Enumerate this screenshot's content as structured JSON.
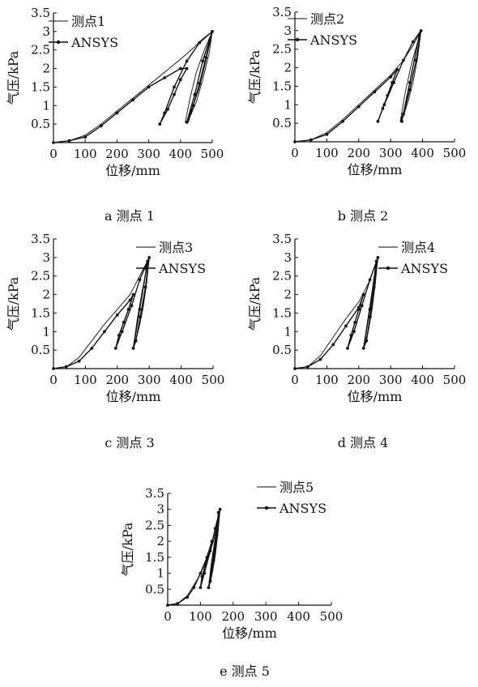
{
  "chart_data": [
    {
      "type": "line",
      "caption": "a 测点 1",
      "xlabel": "位移/mm",
      "ylabel": "气压/kPa",
      "xlim": [
        0,
        500
      ],
      "ylim": [
        0,
        3.5
      ],
      "xticks": [
        0,
        100,
        200,
        300,
        400,
        500
      ],
      "yticks": [
        0.5,
        1.0,
        1.5,
        2.0,
        2.5,
        3.0,
        3.5
      ],
      "legend_position": "top-left",
      "series": [
        {
          "name": "测点1",
          "marker": false,
          "x": [
            0,
            50,
            100,
            150,
            200,
            250,
            300,
            350,
            400,
            440,
            470,
            500,
            490,
            470,
            450,
            425,
            415,
            430,
            450,
            475,
            500,
            480,
            460,
            440,
            425
          ],
          "y": [
            0,
            0.05,
            0.2,
            0.5,
            0.85,
            1.2,
            1.55,
            1.9,
            2.25,
            2.55,
            2.8,
            3.0,
            2.4,
            1.7,
            1.1,
            0.6,
            0.55,
            1.2,
            1.9,
            2.5,
            3.0,
            2.2,
            1.5,
            1.0,
            0.55
          ]
        },
        {
          "name": "ANSYS",
          "marker": true,
          "x": [
            0,
            50,
            100,
            150,
            200,
            250,
            300,
            350,
            400,
            420,
            400,
            380,
            360,
            335,
            350,
            380,
            420,
            460,
            500,
            480,
            460,
            440,
            420,
            445,
            470,
            500
          ],
          "y": [
            0,
            0.05,
            0.15,
            0.45,
            0.8,
            1.15,
            1.5,
            1.75,
            2.0,
            2.0,
            1.7,
            1.3,
            0.9,
            0.5,
            0.8,
            1.5,
            2.2,
            2.7,
            3.0,
            2.3,
            1.6,
            1.0,
            0.55,
            1.3,
            2.2,
            3.0
          ]
        }
      ]
    },
    {
      "type": "line",
      "caption": "b 测点 2",
      "xlabel": "位移/mm",
      "ylabel": "气压/kPa",
      "xlim": [
        0,
        500
      ],
      "ylim": [
        0,
        3.5
      ],
      "xticks": [
        0,
        100,
        200,
        300,
        400,
        500
      ],
      "yticks": [
        0.5,
        1.0,
        1.5,
        2.0,
        2.5,
        3.0,
        3.5
      ],
      "legend_position": "top-left",
      "series": [
        {
          "name": "测点2",
          "marker": false,
          "x": [
            0,
            50,
            100,
            150,
            200,
            250,
            300,
            340,
            370,
            395,
            385,
            370,
            355,
            340,
            330,
            345,
            365,
            395,
            380,
            360,
            345,
            330
          ],
          "y": [
            0,
            0.05,
            0.25,
            0.6,
            1.0,
            1.4,
            1.8,
            2.2,
            2.6,
            3.0,
            2.3,
            1.6,
            1.1,
            0.7,
            0.55,
            1.3,
            2.1,
            3.0,
            2.2,
            1.4,
            0.9,
            0.55
          ]
        },
        {
          "name": "ANSYS",
          "marker": true,
          "x": [
            0,
            50,
            100,
            150,
            200,
            250,
            300,
            320,
            305,
            290,
            275,
            260,
            280,
            310,
            340,
            370,
            395,
            380,
            360,
            340,
            335,
            360,
            390
          ],
          "y": [
            0,
            0.05,
            0.2,
            0.55,
            0.95,
            1.35,
            1.75,
            1.95,
            1.6,
            1.25,
            0.9,
            0.55,
            1.0,
            1.6,
            2.2,
            2.7,
            3.0,
            2.2,
            1.4,
            0.75,
            0.55,
            1.6,
            2.9
          ]
        }
      ]
    },
    {
      "type": "line",
      "caption": "c 测点 3",
      "xlabel": "位移/mm",
      "ylabel": "气压/kPa",
      "xlim": [
        0,
        500
      ],
      "ylim": [
        0,
        3.5
      ],
      "xticks": [
        0,
        100,
        200,
        300,
        400,
        500
      ],
      "yticks": [
        0.5,
        1.0,
        1.5,
        2.0,
        2.5,
        3.0,
        3.5
      ],
      "legend_position": "top-right",
      "series": [
        {
          "name": "测点3",
          "marker": false,
          "x": [
            0,
            40,
            80,
            120,
            160,
            200,
            240,
            270,
            300,
            292,
            280,
            268,
            255,
            250,
            262,
            278,
            300,
            290,
            275,
            262,
            250
          ],
          "y": [
            0,
            0.05,
            0.3,
            0.75,
            1.2,
            1.6,
            2.0,
            2.5,
            3.0,
            2.3,
            1.6,
            1.1,
            0.7,
            0.55,
            1.3,
            2.1,
            3.0,
            2.2,
            1.4,
            0.9,
            0.55
          ]
        },
        {
          "name": "ANSYS",
          "marker": true,
          "x": [
            0,
            40,
            80,
            120,
            160,
            200,
            240,
            250,
            235,
            220,
            205,
            195,
            215,
            245,
            270,
            300,
            288,
            272,
            258,
            250,
            270,
            295
          ],
          "y": [
            0,
            0.05,
            0.2,
            0.55,
            1.0,
            1.45,
            1.85,
            2.0,
            1.6,
            1.25,
            0.9,
            0.55,
            1.0,
            1.7,
            2.4,
            3.0,
            2.2,
            1.4,
            0.75,
            0.55,
            1.6,
            2.9
          ]
        }
      ]
    },
    {
      "type": "line",
      "caption": "d 测点 4",
      "xlabel": "位移/mm",
      "ylabel": "气压/kPa",
      "xlim": [
        0,
        500
      ],
      "ylim": [
        0,
        3.5
      ],
      "xticks": [
        0,
        100,
        200,
        300,
        400,
        500
      ],
      "yticks": [
        0.5,
        1.0,
        1.5,
        2.0,
        2.5,
        3.0,
        3.5
      ],
      "legend_position": "top-right",
      "series": [
        {
          "name": "测点4",
          "marker": false,
          "x": [
            0,
            40,
            80,
            120,
            160,
            200,
            230,
            260,
            252,
            242,
            232,
            222,
            215,
            228,
            242,
            260,
            250,
            238,
            226,
            215
          ],
          "y": [
            0,
            0.05,
            0.35,
            0.85,
            1.35,
            1.8,
            2.3,
            3.0,
            2.3,
            1.6,
            1.1,
            0.7,
            0.55,
            1.3,
            2.1,
            3.0,
            2.2,
            1.4,
            0.9,
            0.55
          ]
        },
        {
          "name": "ANSYS",
          "marker": true,
          "x": [
            0,
            40,
            80,
            120,
            160,
            200,
            215,
            200,
            188,
            176,
            165,
            185,
            210,
            235,
            260,
            248,
            236,
            224,
            215,
            235,
            255
          ],
          "y": [
            0,
            0.05,
            0.25,
            0.65,
            1.15,
            1.65,
            2.0,
            1.6,
            1.25,
            0.9,
            0.55,
            1.0,
            1.7,
            2.4,
            3.0,
            2.2,
            1.4,
            0.75,
            0.55,
            1.6,
            2.9
          ]
        }
      ]
    },
    {
      "type": "line",
      "caption": "e 测点 5",
      "xlabel": "位移/mm",
      "ylabel": "气压/kPa",
      "xlim": [
        0,
        500
      ],
      "ylim": [
        0,
        3.5
      ],
      "xticks": [
        0,
        100,
        200,
        300,
        400,
        500
      ],
      "yticks": [
        0.5,
        1.0,
        1.5,
        2.0,
        2.5,
        3.0,
        3.5
      ],
      "legend_position": "top-right",
      "series": [
        {
          "name": "测点5",
          "marker": false,
          "x": [
            0,
            30,
            60,
            90,
            120,
            140,
            160,
            154,
            146,
            138,
            130,
            125,
            133,
            145,
            160,
            152,
            142,
            132,
            125
          ],
          "y": [
            0,
            0.05,
            0.3,
            0.8,
            1.4,
            2.0,
            3.0,
            2.3,
            1.6,
            1.1,
            0.7,
            0.55,
            1.3,
            2.1,
            3.0,
            2.2,
            1.4,
            0.9,
            0.55
          ]
        },
        {
          "name": "ANSYS",
          "marker": true,
          "x": [
            0,
            30,
            60,
            80,
            100,
            120,
            135,
            125,
            115,
            105,
            100,
            112,
            130,
            145,
            160,
            150,
            140,
            130,
            125,
            140,
            155
          ],
          "y": [
            0,
            0.05,
            0.25,
            0.55,
            1.0,
            1.5,
            2.0,
            1.6,
            1.25,
            0.9,
            0.55,
            1.0,
            1.7,
            2.4,
            3.0,
            2.2,
            1.4,
            0.75,
            0.55,
            1.6,
            2.9
          ]
        }
      ]
    }
  ]
}
